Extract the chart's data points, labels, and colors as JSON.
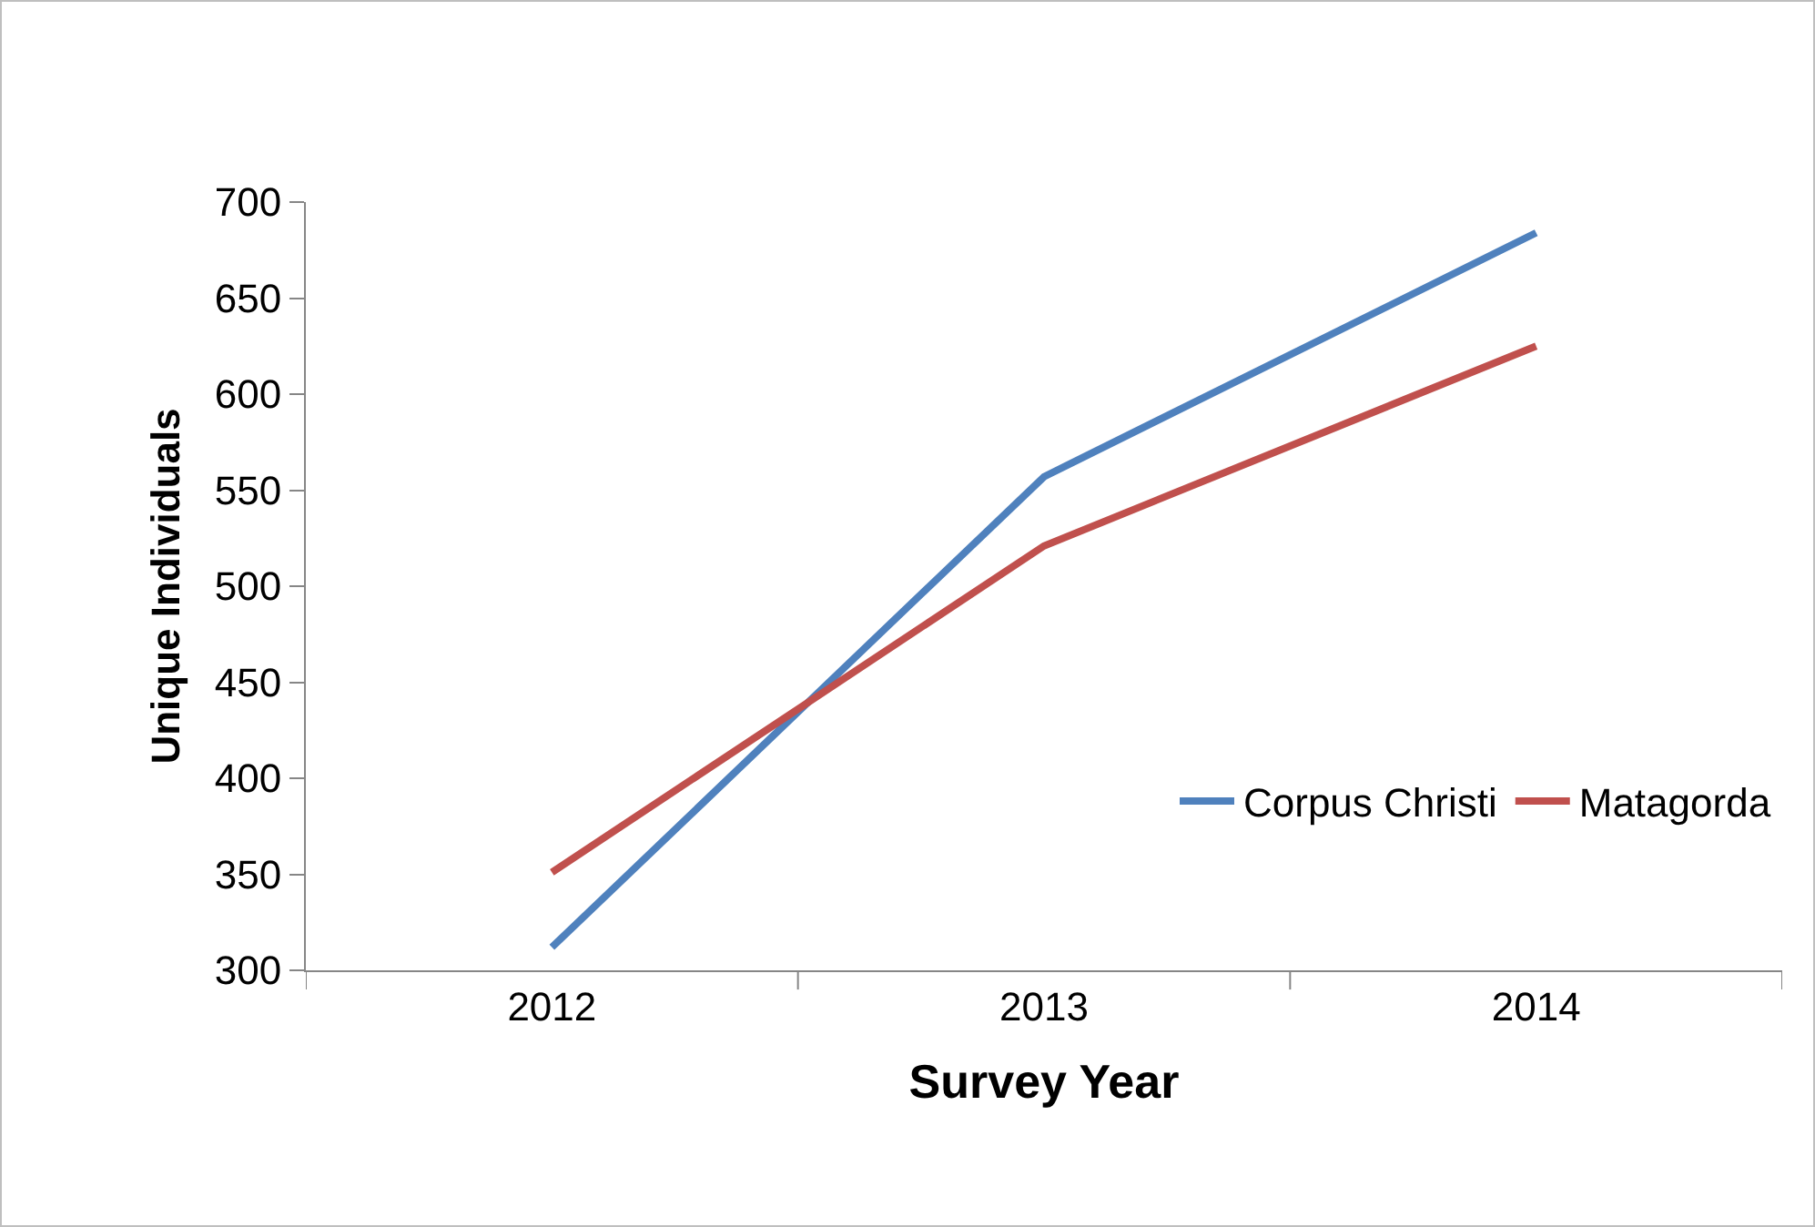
{
  "chart_data": {
    "type": "line",
    "xlabel": "Survey Year",
    "ylabel": "Unique Individuals",
    "categories": [
      "2012",
      "2013",
      "2014"
    ],
    "series": [
      {
        "name": "Corpus Christi",
        "color": "#4f81bd",
        "values": [
          312,
          557,
          684
        ]
      },
      {
        "name": "Matagorda",
        "color": "#c0504d",
        "values": [
          351,
          521,
          625
        ]
      }
    ],
    "ylim": [
      300,
      700
    ],
    "yticks": [
      300,
      350,
      400,
      450,
      500,
      550,
      600,
      650,
      700
    ],
    "grid": false,
    "legend": "bottom right",
    "marker": "none",
    "line_style": "solid"
  }
}
